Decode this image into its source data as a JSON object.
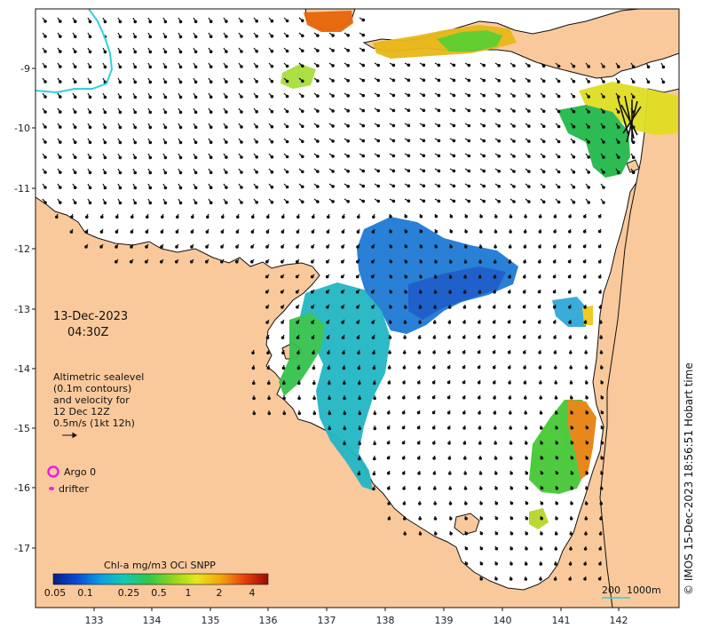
{
  "map": {
    "date": "13-Dec-2023",
    "time": "04:30Z",
    "legend_lines": [
      "Altimetric sealevel",
      "(0.1m contours)",
      "and velocity for",
      "12 Dec 12Z",
      "0.5m/s (1kt 12h)"
    ],
    "argo_label": "Argo 0",
    "drifter_label": "drifter",
    "colorbar": {
      "title": "Chl-a mg/m3 OCi SNPP",
      "ticks": [
        "0.05",
        "0.1",
        "0.25",
        "0.5",
        "1",
        "2",
        "4"
      ],
      "stops": [
        "#081d8a",
        "#0a4bd6",
        "#0aa0e0",
        "#14c8b4",
        "#2ec84a",
        "#8fd61e",
        "#e6e61a",
        "#f5a60f",
        "#e8420a",
        "#9a0c05"
      ]
    },
    "scale_bar": {
      "label_left": "200",
      "label_right": "1000m"
    },
    "credit": "© IMOS 15-Dec-2023 18:56:51 Hobart time",
    "lon_ticks": [
      "133",
      "134",
      "135",
      "136",
      "137",
      "138",
      "139",
      "140",
      "141",
      "142"
    ],
    "lat_ticks": [
      "9",
      "10",
      "11",
      "12",
      "13",
      "14",
      "15",
      "16",
      "17"
    ],
    "colors": {
      "land": "#f9c99c",
      "sea": "#ffffff",
      "contour": "#2fd2dc",
      "argo": "#e81ee8",
      "coast": "#111111"
    }
  }
}
